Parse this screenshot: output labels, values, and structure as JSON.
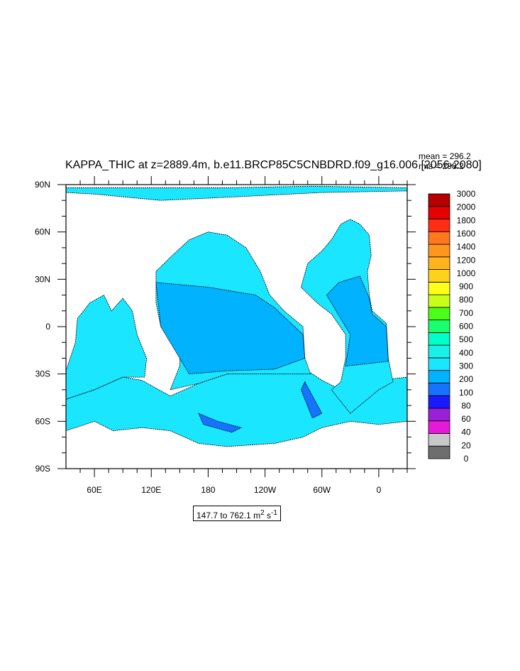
{
  "chart_data": {
    "type": "heatmap",
    "title": "KAPPA_THIC at z=2889.4m, b.e11.BRCP85C5CNBDRD.f09_g16.006 [2056-2080]",
    "stats": {
      "mean": "mean = 296.2",
      "rms": "rms = 298.2"
    },
    "x_ticks": [
      "60E",
      "120E",
      "180",
      "120W",
      "60W",
      "0"
    ],
    "y_ticks": [
      "90N",
      "60N",
      "30N",
      "0",
      "30S",
      "60S",
      "90S"
    ],
    "xlim": [
      30,
      390
    ],
    "ylim": [
      -90,
      90
    ],
    "range_label": {
      "text": "147.7 to 762.1 m",
      "sup1": "2",
      "mid": " s",
      "sup2": "-1"
    },
    "colorbar": {
      "levels": [
        "0",
        "20",
        "40",
        "60",
        "80",
        "100",
        "200",
        "300",
        "400",
        "500",
        "600",
        "700",
        "800",
        "900",
        "1000",
        "1200",
        "1400",
        "1600",
        "1800",
        "2000",
        "3000"
      ],
      "colors": [
        "#6e6e6e",
        "#c8c8c8",
        "#e619d9",
        "#9b1fd6",
        "#1a1aff",
        "#1673ff",
        "#00b2ff",
        "#1ae6ff",
        "#19f0e6",
        "#00ffc8",
        "#19ff6e",
        "#4cff19",
        "#c8ff19",
        "#ffff19",
        "#ffd21e",
        "#ffb41e",
        "#ff961e",
        "#ff781e",
        "#ff2d14",
        "#e60000",
        "#b40000"
      ]
    },
    "field_colors": {
      "main": "#1ae6ff",
      "mid": "#00b2ff",
      "low": "#1673ff",
      "land": "#ffffff"
    }
  }
}
